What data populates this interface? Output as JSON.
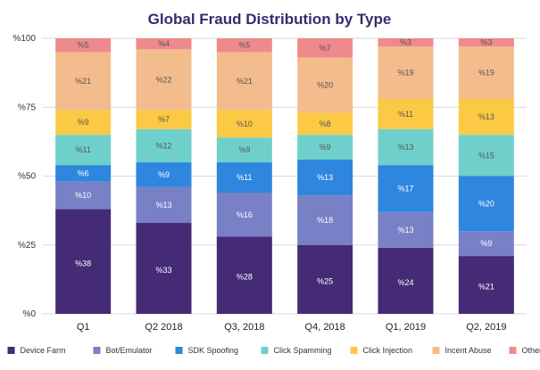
{
  "chart_data": {
    "type": "bar",
    "stacked": true,
    "title": "Global Fraud Distribution by Type",
    "categories": [
      "Q1",
      "Q2 2018",
      "Q3, 2018",
      "Q4, 2018",
      "Q1, 2019",
      "Q2, 2019"
    ],
    "y_ticks": [
      "%0",
      "%25",
      "%50",
      "%75",
      "%100"
    ],
    "ylim": [
      0,
      100
    ],
    "grid": true,
    "legend_position": "bottom",
    "label_prefix": "%",
    "series": [
      {
        "name": "Device Farm",
        "color": "#452a75",
        "values": [
          38,
          33,
          28,
          25,
          24,
          21
        ]
      },
      {
        "name": "Bot/Emulator",
        "color": "#7880c6",
        "values": [
          10,
          13,
          16,
          18,
          13,
          9
        ]
      },
      {
        "name": "SDK Spoofing",
        "color": "#2e86de",
        "values": [
          6,
          9,
          11,
          13,
          17,
          20
        ]
      },
      {
        "name": "Click Spamming",
        "color": "#6fd0cb",
        "values": [
          11,
          12,
          9,
          9,
          13,
          15
        ]
      },
      {
        "name": "Click Injection",
        "color": "#fcc945",
        "values": [
          9,
          7,
          10,
          8,
          11,
          13
        ]
      },
      {
        "name": "Incent Abuse",
        "color": "#f2bc8d",
        "values": [
          21,
          22,
          21,
          20,
          19,
          19
        ]
      },
      {
        "name": "Other",
        "color": "#ef8a8c",
        "values": [
          5,
          4,
          5,
          7,
          3,
          3
        ]
      }
    ]
  }
}
